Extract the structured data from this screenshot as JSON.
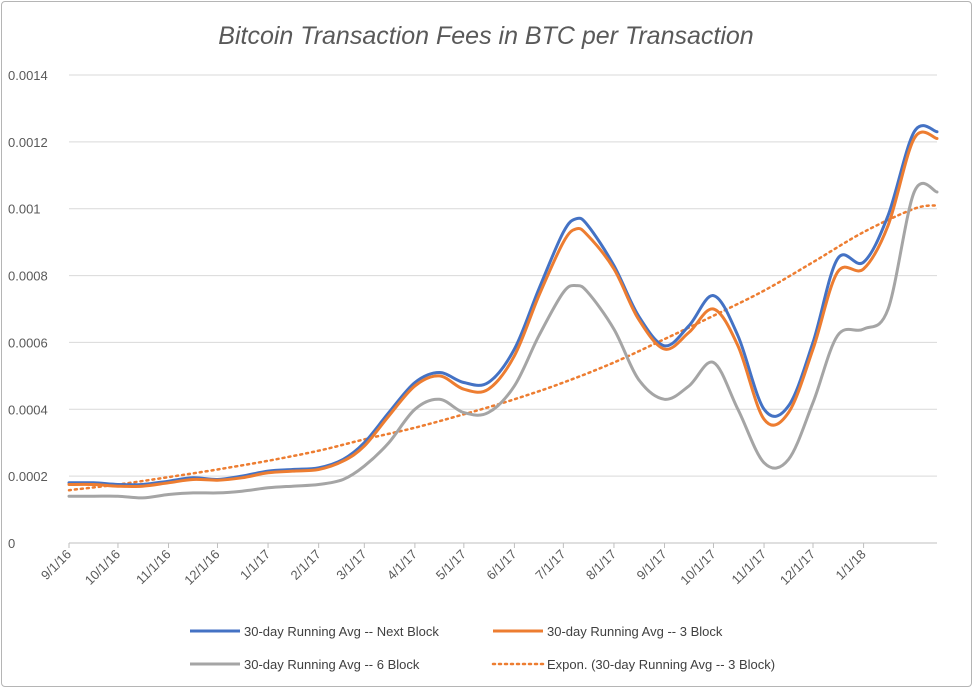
{
  "chart_data": {
    "type": "line",
    "title": "Bitcoin Transaction Fees in BTC per Transaction",
    "xlabel": "",
    "ylabel": "",
    "ylim": [
      0,
      0.0014
    ],
    "y_ticks": [
      "0",
      "0.0002",
      "0.0004",
      "0.0006",
      "0.0008",
      "0.001",
      "0.0012",
      "0.0014"
    ],
    "x_ticks": [
      "9/1/16",
      "10/1/16",
      "11/1/16",
      "12/1/16",
      "1/1/17",
      "2/1/17",
      "3/1/17",
      "4/1/17",
      "5/1/17",
      "6/1/17",
      "7/1/17",
      "8/1/17",
      "9/1/17",
      "10/1/17",
      "11/1/17",
      "12/1/17",
      "1/1/18"
    ],
    "x_range": [
      "9/1/16",
      "2/15/18"
    ],
    "grid": "horizontal",
    "legend_position": "bottom",
    "series": [
      {
        "name": "30-day Running Avg -- Next Block",
        "color": "#4472c4",
        "style": "solid",
        "x": [
          "9/1/16",
          "9/16/16",
          "10/1/16",
          "10/16/16",
          "11/1/16",
          "11/16/16",
          "12/1/16",
          "12/16/16",
          "1/1/17",
          "1/16/17",
          "2/1/17",
          "2/16/17",
          "3/1/17",
          "3/16/17",
          "4/1/17",
          "4/16/17",
          "5/1/17",
          "5/16/17",
          "6/1/17",
          "6/16/17",
          "7/1/17",
          "7/9/17",
          "7/16/17",
          "8/1/17",
          "8/16/17",
          "9/1/17",
          "9/16/17",
          "10/1/17",
          "10/16/17",
          "11/1/17",
          "11/16/17",
          "12/1/17",
          "12/16/17",
          "1/1/18",
          "1/16/18",
          "2/1/18",
          "2/15/18"
        ],
        "values": [
          0.00018,
          0.00018,
          0.000175,
          0.000175,
          0.000185,
          0.000195,
          0.00019,
          0.0002,
          0.000215,
          0.00022,
          0.000225,
          0.00025,
          0.0003,
          0.00039,
          0.00048,
          0.00051,
          0.00048,
          0.00048,
          0.00058,
          0.00076,
          0.00093,
          0.00097,
          0.00095,
          0.00083,
          0.00068,
          0.00059,
          0.00065,
          0.00074,
          0.00062,
          0.0004,
          0.00041,
          0.0006,
          0.00085,
          0.00084,
          0.00098,
          0.00123,
          0.00123
        ]
      },
      {
        "name": "30-day Running Avg -- 3 Block",
        "color": "#ed7d31",
        "style": "solid",
        "x": [
          "9/1/16",
          "9/16/16",
          "10/1/16",
          "10/16/16",
          "11/1/16",
          "11/16/16",
          "12/1/16",
          "12/16/16",
          "1/1/17",
          "1/16/17",
          "2/1/17",
          "2/16/17",
          "3/1/17",
          "3/16/17",
          "4/1/17",
          "4/16/17",
          "5/1/17",
          "5/16/17",
          "6/1/17",
          "6/16/17",
          "7/1/17",
          "7/9/17",
          "7/16/17",
          "8/1/17",
          "8/16/17",
          "9/1/17",
          "9/16/17",
          "10/1/17",
          "10/16/17",
          "11/1/17",
          "11/16/17",
          "12/1/17",
          "12/16/17",
          "1/1/18",
          "1/16/18",
          "2/1/18",
          "2/15/18"
        ],
        "values": [
          0.000175,
          0.000175,
          0.00017,
          0.00017,
          0.00018,
          0.00019,
          0.000188,
          0.000195,
          0.00021,
          0.000215,
          0.00022,
          0.000245,
          0.00029,
          0.00038,
          0.00047,
          0.0005,
          0.00046,
          0.00046,
          0.00056,
          0.00074,
          0.0009,
          0.00094,
          0.00092,
          0.00082,
          0.00067,
          0.00058,
          0.00063,
          0.0007,
          0.00059,
          0.00037,
          0.00039,
          0.00058,
          0.00081,
          0.00082,
          0.00095,
          0.00121,
          0.00121
        ]
      },
      {
        "name": "30-day Running Avg -- 6 Block",
        "color": "#a5a5a5",
        "style": "solid",
        "x": [
          "9/1/16",
          "9/16/16",
          "10/1/16",
          "10/16/16",
          "11/1/16",
          "11/16/16",
          "12/1/16",
          "12/16/16",
          "1/1/17",
          "1/16/17",
          "2/1/17",
          "2/16/17",
          "3/1/17",
          "3/16/17",
          "4/1/17",
          "4/16/17",
          "5/1/17",
          "5/16/17",
          "6/1/17",
          "6/16/17",
          "7/1/17",
          "7/9/17",
          "7/16/17",
          "8/1/17",
          "8/16/17",
          "9/1/17",
          "9/16/17",
          "10/1/17",
          "10/16/17",
          "11/1/17",
          "11/16/17",
          "12/1/17",
          "12/16/17",
          "1/1/18",
          "1/16/18",
          "2/1/18",
          "2/15/18"
        ],
        "values": [
          0.00014,
          0.00014,
          0.00014,
          0.000135,
          0.000145,
          0.00015,
          0.00015,
          0.000155,
          0.000165,
          0.00017,
          0.000175,
          0.00019,
          0.00023,
          0.0003,
          0.0004,
          0.00043,
          0.00039,
          0.00039,
          0.00047,
          0.00062,
          0.00075,
          0.00077,
          0.00075,
          0.00064,
          0.00049,
          0.00043,
          0.00047,
          0.00054,
          0.0004,
          0.00024,
          0.00025,
          0.00042,
          0.00062,
          0.00064,
          0.0007,
          0.00105,
          0.00105
        ]
      },
      {
        "name": "Expon.  (30-day Running Avg -- 3 Block)",
        "color": "#ed7d31",
        "style": "dotted",
        "x": [
          "9/1/16",
          "10/1/16",
          "11/1/16",
          "12/1/16",
          "1/1/17",
          "2/1/17",
          "3/1/17",
          "4/1/17",
          "5/1/17",
          "6/1/17",
          "7/1/17",
          "8/1/17",
          "9/1/17",
          "10/1/17",
          "11/1/17",
          "12/1/17",
          "1/1/18",
          "2/1/18",
          "2/15/18"
        ],
        "values": [
          0.000158,
          0.000175,
          0.000197,
          0.00022,
          0.000246,
          0.000276,
          0.00031,
          0.000345,
          0.000385,
          0.00043,
          0.00048,
          0.00054,
          0.00061,
          0.00068,
          0.000755,
          0.00084,
          0.00093,
          0.001,
          0.00101
        ]
      }
    ]
  }
}
